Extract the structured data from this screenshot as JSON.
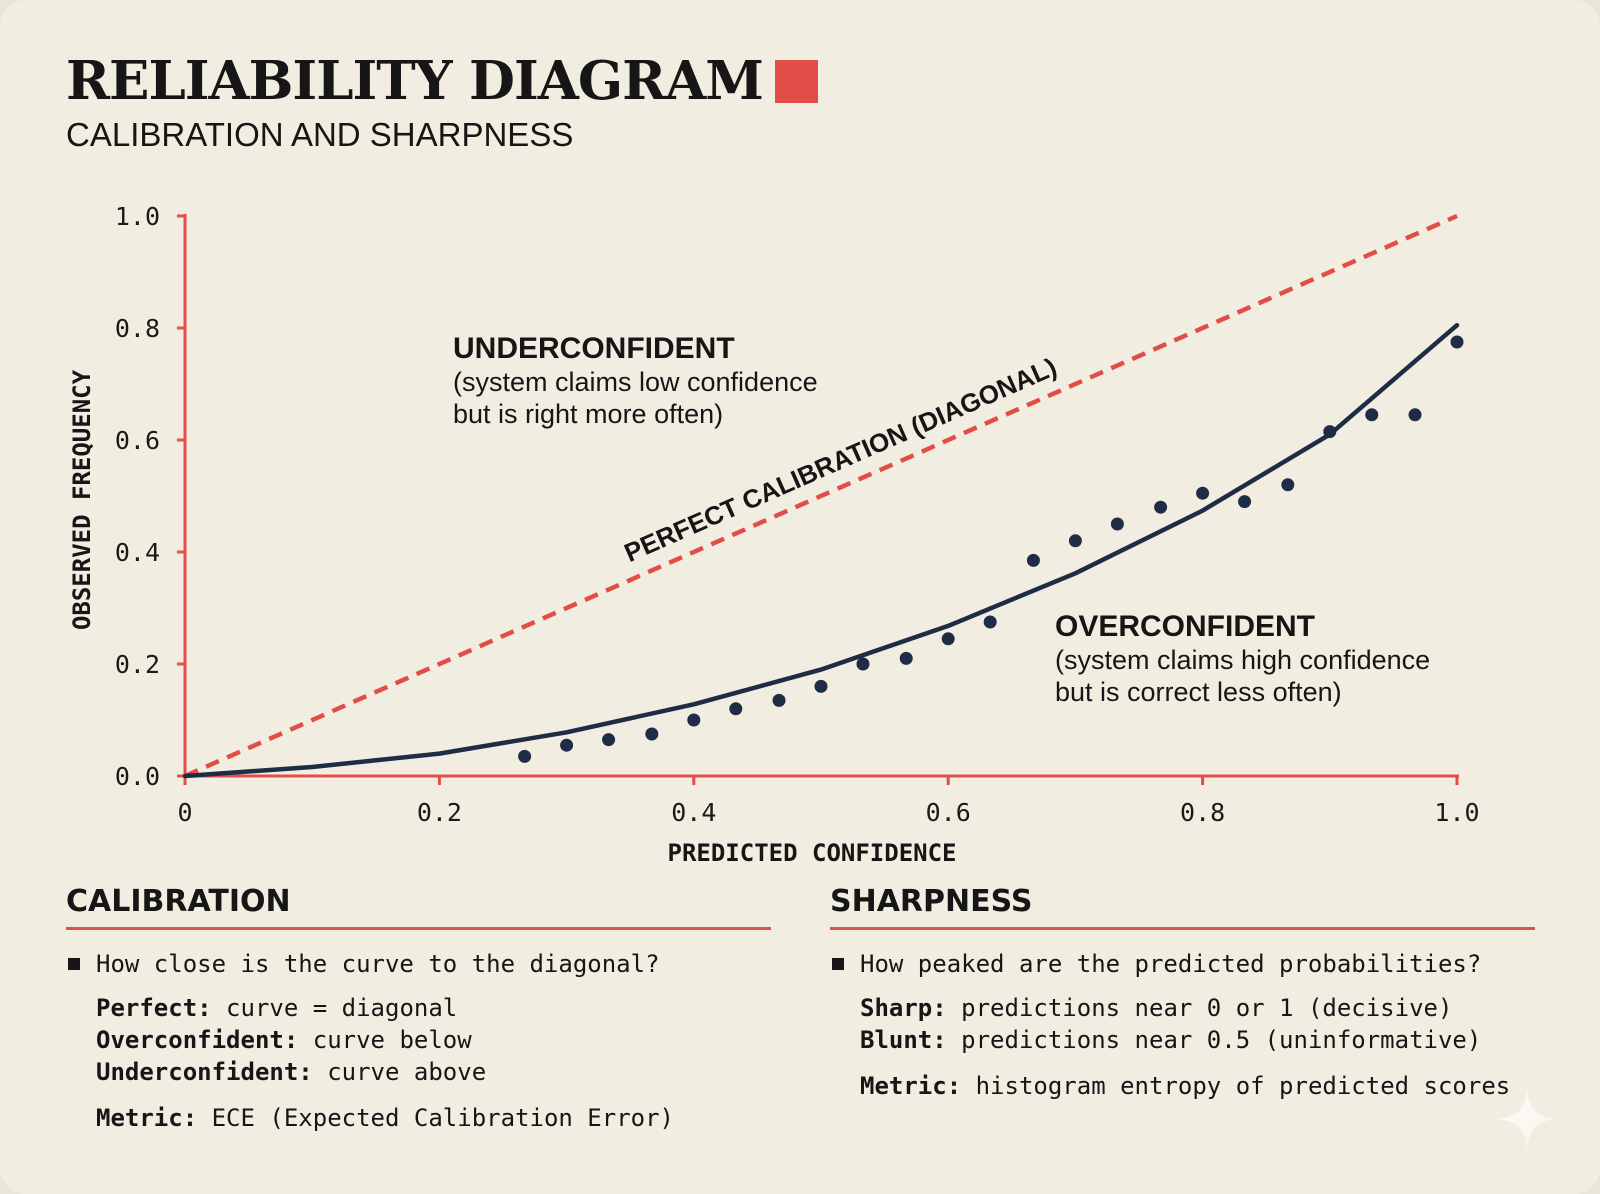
{
  "header": {
    "title": "RELIABILITY DIAGRAM",
    "subtitle": "CALIBRATION AND SHARPNESS"
  },
  "colors": {
    "accent": "#e24e47",
    "curve": "#1e2d45",
    "background": "#f1ede1"
  },
  "chart_data": {
    "type": "scatter",
    "title": "",
    "xlabel": "PREDICTED CONFIDENCE",
    "ylabel": "OBSERVED FREQUENCY",
    "xlim": [
      0,
      1.0
    ],
    "ylim": [
      0,
      1.0
    ],
    "x_ticks": [
      "0",
      "0.2",
      "0.4",
      "0.6",
      "0.8",
      "1.0"
    ],
    "y_ticks": [
      "0.0",
      "0.2",
      "0.4",
      "0.6",
      "0.8",
      "1.0"
    ],
    "grid": false,
    "series": [
      {
        "type": "line-dashed",
        "label": "PERFECT CALIBRATION (DIAGONAL)",
        "x": [
          0,
          1.0
        ],
        "y": [
          0,
          1.0
        ]
      },
      {
        "type": "line",
        "x": [
          0,
          0.1,
          0.2,
          0.3,
          0.4,
          0.5,
          0.6,
          0.7,
          0.8,
          0.9,
          1.0
        ],
        "y": [
          0,
          0.016,
          0.04,
          0.078,
          0.128,
          0.19,
          0.268,
          0.362,
          0.474,
          0.61,
          0.805
        ]
      },
      {
        "type": "scatter",
        "x": [
          0.267,
          0.3,
          0.333,
          0.367,
          0.4,
          0.433,
          0.467,
          0.5,
          0.533,
          0.567,
          0.6,
          0.633,
          0.667,
          0.7,
          0.733,
          0.767,
          0.8,
          0.833,
          0.867,
          0.9,
          0.933,
          0.967,
          1.0
        ],
        "y": [
          0.035,
          0.055,
          0.065,
          0.075,
          0.1,
          0.12,
          0.135,
          0.16,
          0.2,
          0.21,
          0.245,
          0.275,
          0.385,
          0.42,
          0.45,
          0.48,
          0.505,
          0.49,
          0.52,
          0.615,
          0.645,
          0.645,
          0.775
        ]
      }
    ],
    "annotations": [
      {
        "title": "UNDERCONFIDENT",
        "lines": [
          "(system claims low confidence",
          "but is right more often)"
        ]
      },
      {
        "title": "OVERCONFIDENT",
        "lines": [
          "(system claims high confidence",
          "but is correct less often)"
        ]
      }
    ]
  },
  "calibration": {
    "heading": "CALIBRATION",
    "question": "How close is the curve to the diagonal?",
    "perfect_label": "Perfect:",
    "perfect_text": "curve = diagonal",
    "over_label": "Overconfident:",
    "over_text": "curve below",
    "under_label": "Underconfident:",
    "under_text": "curve above",
    "metric_label": "Metric:",
    "metric_text": "ECE (Expected Calibration Error)"
  },
  "sharpness": {
    "heading": "SHARPNESS",
    "question": "How peaked are the predicted probabilities?",
    "sharp_label": "Sharp:",
    "sharp_text": "predictions near 0 or 1 (decisive)",
    "blunt_label": "Blunt:",
    "blunt_text": "predictions near 0.5 (uninformative)",
    "metric_label": "Metric:",
    "metric_text": "histogram entropy of predicted scores"
  }
}
